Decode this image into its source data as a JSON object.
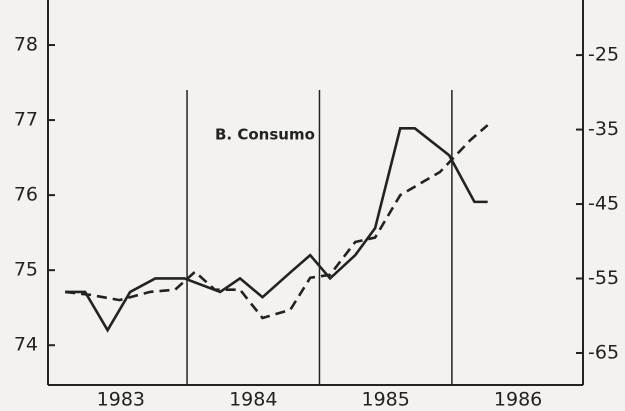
{
  "chart_data": {
    "type": "line",
    "annotation": "B. Consumo",
    "xlim": [
      1982.95,
      1986.99
    ],
    "xticks": [
      {
        "value": 1983.5,
        "label": "1983"
      },
      {
        "value": 1984.5,
        "label": "1984"
      },
      {
        "value": 1985.5,
        "label": "1985"
      },
      {
        "value": 1986.5,
        "label": "1986"
      }
    ],
    "vlines": [
      1984,
      1985,
      1986
    ],
    "ylim": [
      73.47,
      78.6
    ],
    "yticks": [
      74,
      75,
      76,
      77,
      78
    ],
    "y2lim": [
      -69.3,
      -17.6
    ],
    "y2ticks": [
      -25,
      -35,
      -45,
      -55,
      -65
    ],
    "series": [
      {
        "color": "#222",
        "dash": false,
        "x": [
          1983.08,
          1983.23,
          1983.4,
          1983.57,
          1983.76,
          1983.98,
          1984.25,
          1984.4,
          1984.57,
          1984.78,
          1984.93,
          1985.08,
          1985.27,
          1985.42,
          1985.61,
          1985.72,
          1985.98,
          1986.17,
          1986.27
        ],
        "values": [
          74.71,
          74.71,
          74.2,
          74.71,
          74.89,
          74.89,
          74.71,
          74.89,
          74.64,
          74.97,
          75.2,
          74.89,
          75.2,
          75.56,
          76.89,
          76.89,
          76.53,
          75.91,
          75.91
        ]
      },
      {
        "color": "#222",
        "dash": true,
        "axis": "y2",
        "x": [
          1983.08,
          1983.27,
          1983.49,
          1983.72,
          1983.91,
          1984.06,
          1984.21,
          1984.4,
          1984.57,
          1984.78,
          1984.93,
          1985.08,
          1985.27,
          1985.42,
          1985.61,
          1985.91,
          1986.14,
          1986.27
        ],
        "values": [
          -56.8,
          -57.2,
          -57.9,
          -56.8,
          -56.5,
          -54.1,
          -56.5,
          -56.5,
          -60.3,
          -59.2,
          -54.9,
          -54.5,
          -50.1,
          -49.5,
          -43.8,
          -40.7,
          -36.4,
          -34.4
        ]
      }
    ]
  }
}
